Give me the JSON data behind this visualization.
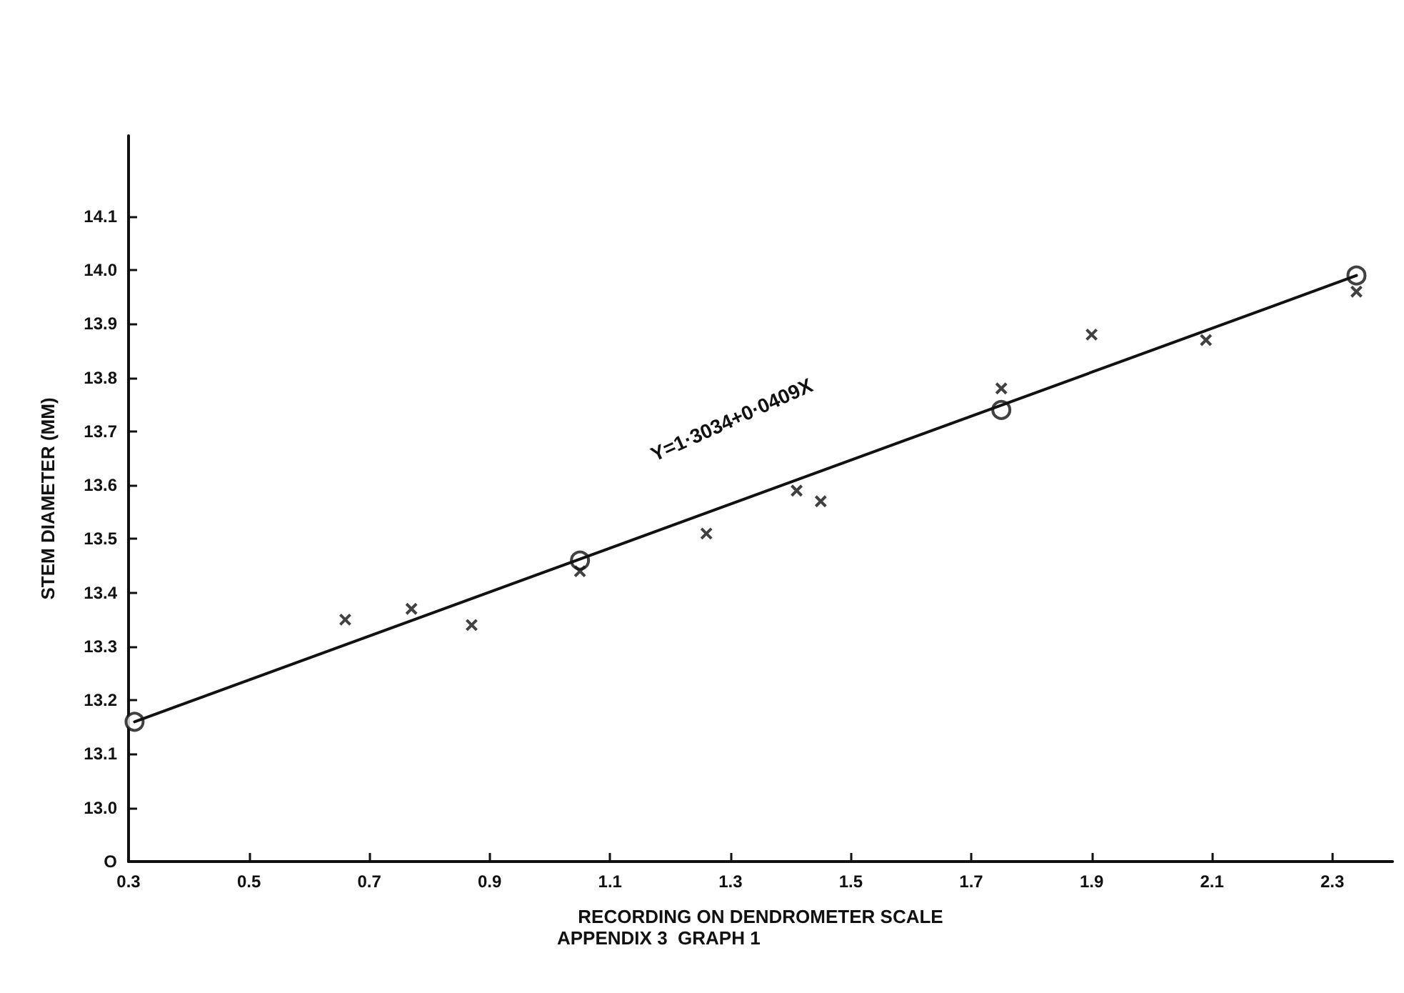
{
  "chart_data": {
    "type": "scatter",
    "xlabel": "RECORDING ON DENDROMETER SCALE",
    "ylabel": "STEM DIAMETER (MM)",
    "annotations": [
      "Y=1·3034+0·0409X",
      "APPENDIX 3  GRAPH 1"
    ],
    "xlim": [
      0.3,
      2.4
    ],
    "ylim": [
      12.9,
      14.25
    ],
    "xticks": [
      0.3,
      0.5,
      0.7,
      0.9,
      1.1,
      1.3,
      1.5,
      1.7,
      1.9,
      2.1,
      2.3
    ],
    "yticks": [
      {
        "value": 12.9,
        "label": "O"
      },
      {
        "value": 13.0,
        "label": "13.0"
      },
      13.1,
      13.2,
      13.3,
      13.4,
      13.5,
      13.6,
      13.7,
      13.8,
      13.9,
      {
        "value": 14.0,
        "label": "14.0"
      },
      14.1
    ],
    "grid": false,
    "series": [
      {
        "type": "line",
        "color": "#111111",
        "marker": "none",
        "line_style": "solid",
        "x": [
          0.31,
          2.34
        ],
        "values": [
          13.16,
          13.99
        ]
      },
      {
        "color": "#111111",
        "marker": "circle",
        "x": [
          0.31,
          1.05,
          1.75,
          2.34
        ],
        "values": [
          13.16,
          13.46,
          13.74,
          13.99
        ]
      },
      {
        "color": "#111111",
        "marker": "cross",
        "x": [
          0.66,
          0.77,
          0.87,
          1.05,
          1.26,
          1.41,
          1.45,
          1.75,
          1.9,
          2.09,
          2.34
        ],
        "values": [
          13.35,
          13.37,
          13.34,
          13.44,
          13.51,
          13.59,
          13.57,
          13.78,
          13.88,
          13.87,
          13.96
        ]
      }
    ]
  }
}
